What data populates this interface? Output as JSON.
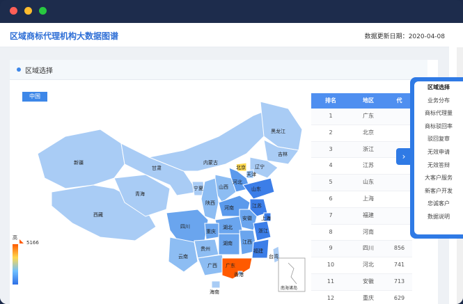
{
  "window": {
    "controls": [
      {
        "name": "close",
        "color": "#ff5f57"
      },
      {
        "name": "minimize",
        "color": "#febc2e"
      },
      {
        "name": "maximize",
        "color": "#28c840"
      }
    ]
  },
  "header": {
    "title": "区域商标代理机构大数据图谱",
    "update_label": "数据更新日期：",
    "update_date": "2020-04-08"
  },
  "panel": {
    "title": "区域选择",
    "region_tag": "中国"
  },
  "legend": {
    "high_label": "高",
    "max_value": "5166"
  },
  "map": {
    "provinces": [
      "新疆",
      "西藏",
      "青海",
      "甘肃",
      "内蒙古",
      "黑龙江",
      "吉林",
      "辽宁",
      "北京",
      "天津",
      "河北",
      "山西",
      "宁夏",
      "陕西",
      "山东",
      "河南",
      "江苏",
      "安徽",
      "上海",
      "浙江",
      "湖北",
      "四川",
      "重庆",
      "贵州",
      "湖南",
      "江西",
      "福建",
      "云南",
      "广西",
      "广东",
      "香港",
      "台湾",
      "海南"
    ],
    "inset_label": "南海诸岛"
  },
  "table": {
    "headers": [
      "排名",
      "地区",
      "代"
    ],
    "rows": [
      {
        "rank": "1",
        "region": "广东",
        "value": ""
      },
      {
        "rank": "2",
        "region": "北京",
        "value": ""
      },
      {
        "rank": "3",
        "region": "浙江",
        "value": ""
      },
      {
        "rank": "4",
        "region": "江苏",
        "value": ""
      },
      {
        "rank": "5",
        "region": "山东",
        "value": ""
      },
      {
        "rank": "6",
        "region": "上海",
        "value": ""
      },
      {
        "rank": "7",
        "region": "福建",
        "value": ""
      },
      {
        "rank": "8",
        "region": "河南",
        "value": ""
      },
      {
        "rank": "9",
        "region": "四川",
        "value": "856"
      },
      {
        "rank": "10",
        "region": "河北",
        "value": "741"
      },
      {
        "rank": "11",
        "region": "安徽",
        "value": "713"
      },
      {
        "rank": "12",
        "region": "重庆",
        "value": "629"
      }
    ]
  },
  "sidebar": {
    "toggle_icon": "chevron-right-icon",
    "items": [
      "区域选择",
      "业务分布",
      "商标代理量",
      "商标驳回率",
      "驳回复审",
      "无效申请",
      "无效答辩",
      "大客户服务",
      "新客户开发",
      "忠诚客户",
      "数据说明"
    ]
  }
}
